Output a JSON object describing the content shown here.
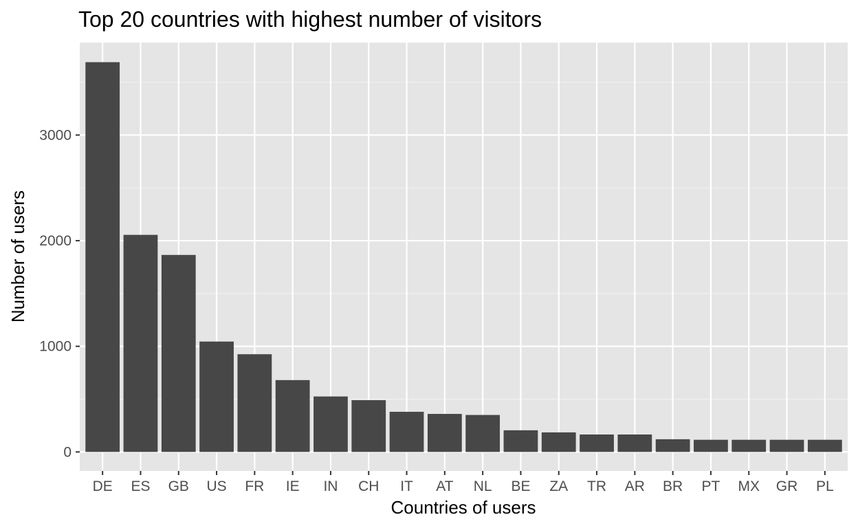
{
  "chart_data": {
    "type": "bar",
    "title": "Top 20 countries with highest number of visitors",
    "xlabel": "Countries of users",
    "ylabel": "Number of users",
    "categories": [
      "DE",
      "ES",
      "GB",
      "US",
      "FR",
      "IE",
      "IN",
      "CH",
      "IT",
      "AT",
      "NL",
      "BE",
      "ZA",
      "TR",
      "AR",
      "BR",
      "PT",
      "MX",
      "GR",
      "PL"
    ],
    "values": [
      3690,
      2055,
      1865,
      1045,
      925,
      680,
      525,
      490,
      380,
      360,
      350,
      205,
      185,
      165,
      165,
      120,
      115,
      115,
      115,
      115
    ],
    "yticks": [
      0,
      1000,
      2000,
      3000
    ],
    "ylim": [
      -180,
      3875
    ],
    "grid": true,
    "colors": {
      "bar": "#474747",
      "panel": "#e5e5e5",
      "grid": "#ffffff"
    }
  }
}
